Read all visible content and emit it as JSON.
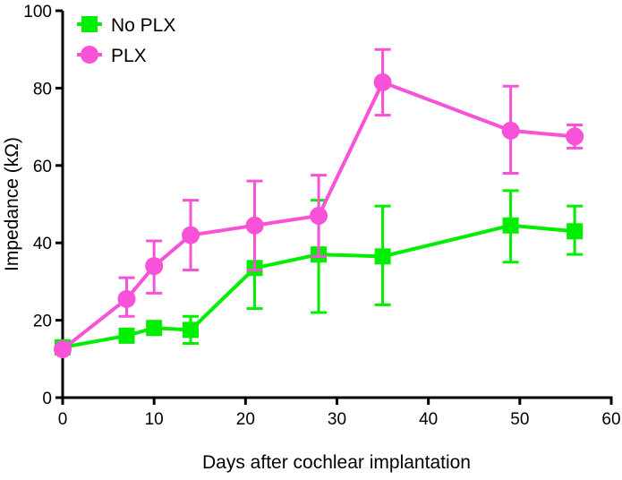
{
  "chart_data": {
    "type": "line",
    "title": "",
    "xlabel": "Days after cochlear implantation",
    "ylabel": "Impedance (kΩ)",
    "xlim": [
      0,
      60
    ],
    "ylim": [
      0,
      100
    ],
    "xticks": [
      0,
      10,
      20,
      30,
      40,
      50,
      60
    ],
    "yticks": [
      0,
      20,
      40,
      60,
      80,
      100
    ],
    "grid": false,
    "legend_placement": "top-left",
    "x": [
      0,
      7,
      10,
      14,
      21,
      28,
      35,
      49,
      56
    ],
    "series": [
      {
        "name": "No PLX",
        "color": "#00ee00",
        "marker": "square",
        "values": [
          13,
          16,
          18,
          17.5,
          33.5,
          37,
          36.5,
          44.5,
          43
        ],
        "error_upper": [
          13,
          16,
          18,
          21,
          44,
          51,
          49.5,
          53.5,
          49.5
        ],
        "error_lower": [
          13,
          16,
          18,
          14,
          23,
          22,
          24,
          35,
          37
        ]
      },
      {
        "name": "PLX",
        "color": "#f752d8",
        "marker": "circle",
        "values": [
          12.5,
          25.5,
          34,
          42,
          44.5,
          47,
          81.5,
          69,
          67.5
        ],
        "error_upper": [
          12.5,
          31,
          40.5,
          51,
          56,
          57.5,
          90,
          80.5,
          70.5
        ],
        "error_lower": [
          12.5,
          21,
          27,
          33,
          33,
          36.5,
          73,
          58,
          64.5
        ]
      }
    ]
  }
}
